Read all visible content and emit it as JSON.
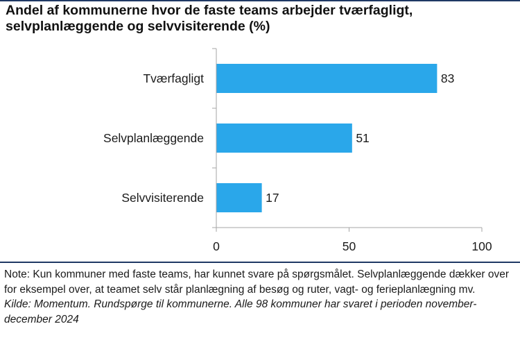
{
  "title": "Andel af kommunerne hvor de faste teams arbejder tværfagligt, selvplanlæggende og selvvisiterende (%)",
  "note": "Note: Kun kommuner med faste teams, har kunnet svare på spørgsmålet. Selvplanlæggende dækker over for eksempel over, at teamet selv står planlægning af besøg og ruter, vagt- og ferieplanlægning mv.",
  "source": "Kilde: Momentum. Rundspørge til kommunerne. Alle 98 kommuner har svaret i perioden november-december 2024",
  "colors": {
    "bar": "#2aa7ea",
    "axis": "#a6a6a6",
    "rule": "#1f3864"
  },
  "chart_data": {
    "type": "bar",
    "orientation": "horizontal",
    "title": "Andel af kommunerne hvor de faste teams arbejder tværfagligt, selvplanlæggende og selvvisiterende (%)",
    "categories": [
      "Tværfagligt",
      "Selvplanlæggende",
      "Selvvisiterende"
    ],
    "values": [
      83,
      51,
      17
    ],
    "value_labels": [
      "83",
      "51",
      "17"
    ],
    "xlim": [
      0,
      100
    ],
    "xticks": [
      0,
      50,
      100
    ],
    "xtick_labels": [
      "0",
      "50",
      "100"
    ],
    "xlabel": "",
    "ylabel": "",
    "grid": false,
    "legend": "none"
  }
}
